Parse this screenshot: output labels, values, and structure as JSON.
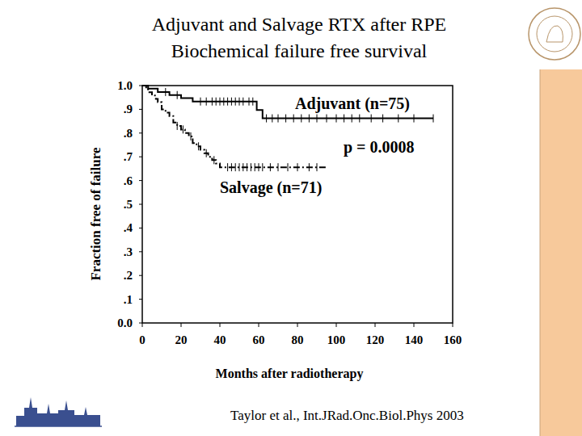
{
  "chart_data": {
    "type": "step",
    "title": [
      "Adjuvant and Salvage RTX after RPE",
      "Biochemical failure free survival"
    ],
    "x_label": "Months after radiotherapy",
    "y_label": "Fraction free of failure",
    "annotations": [
      "p = 0.0008"
    ],
    "source": "Taylor et al., Int.JRad.Onc.Biol.Phys 2003",
    "xlim": [
      0,
      160
    ],
    "ylim": [
      0,
      1
    ],
    "xticks": [
      0,
      20,
      40,
      60,
      80,
      100,
      120,
      140,
      160
    ],
    "yticks": [
      {
        "value": 0,
        "label": "0.0"
      },
      {
        "value": 0.1,
        "label": ".1"
      },
      {
        "value": 0.2,
        "label": ".2"
      },
      {
        "value": 0.3,
        "label": ".3"
      },
      {
        "value": 0.4,
        "label": ".4"
      },
      {
        "value": 0.5,
        "label": ".5"
      },
      {
        "value": 0.6,
        "label": ".6"
      },
      {
        "value": 0.7,
        "label": ".7"
      },
      {
        "value": 0.8,
        "label": ".8"
      },
      {
        "value": 0.9,
        "label": ".9"
      },
      {
        "value": 1,
        "label": "1.0"
      }
    ],
    "grid": false,
    "series": [
      {
        "name": "Adjuvant (n=75)",
        "color": "#000000",
        "line_style": "solid",
        "x": [
          0,
          3,
          8,
          14,
          20,
          26,
          59,
          62,
          150
        ],
        "values": [
          1.0,
          0.987,
          0.973,
          0.96,
          0.947,
          0.933,
          0.897,
          0.862,
          0.862
        ],
        "censored": [
          12,
          18,
          30,
          33,
          36,
          38,
          40,
          42,
          44,
          46,
          48,
          50,
          52,
          55,
          57,
          64,
          67,
          70,
          74,
          78,
          82,
          86,
          90,
          95,
          100,
          104,
          108,
          112,
          118,
          124,
          132,
          140,
          150
        ]
      },
      {
        "name": "Salvage (n=71)",
        "color": "#000000",
        "line_style": "dashdot",
        "x": [
          0,
          2,
          3,
          5,
          7,
          8,
          10,
          12,
          14,
          16,
          18,
          20,
          22,
          24,
          26,
          28,
          30,
          32,
          34,
          36,
          38,
          40,
          95
        ],
        "values": [
          1.0,
          0.986,
          0.972,
          0.958,
          0.944,
          0.93,
          0.9,
          0.886,
          0.872,
          0.844,
          0.83,
          0.815,
          0.8,
          0.786,
          0.758,
          0.744,
          0.73,
          0.715,
          0.7,
          0.686,
          0.672,
          0.656,
          0.656
        ],
        "censored": [
          18,
          21,
          25,
          29,
          33,
          37,
          44,
          46,
          48,
          50,
          52,
          54,
          56,
          58,
          60,
          62,
          66,
          70,
          75,
          80,
          86,
          90
        ]
      }
    ]
  }
}
